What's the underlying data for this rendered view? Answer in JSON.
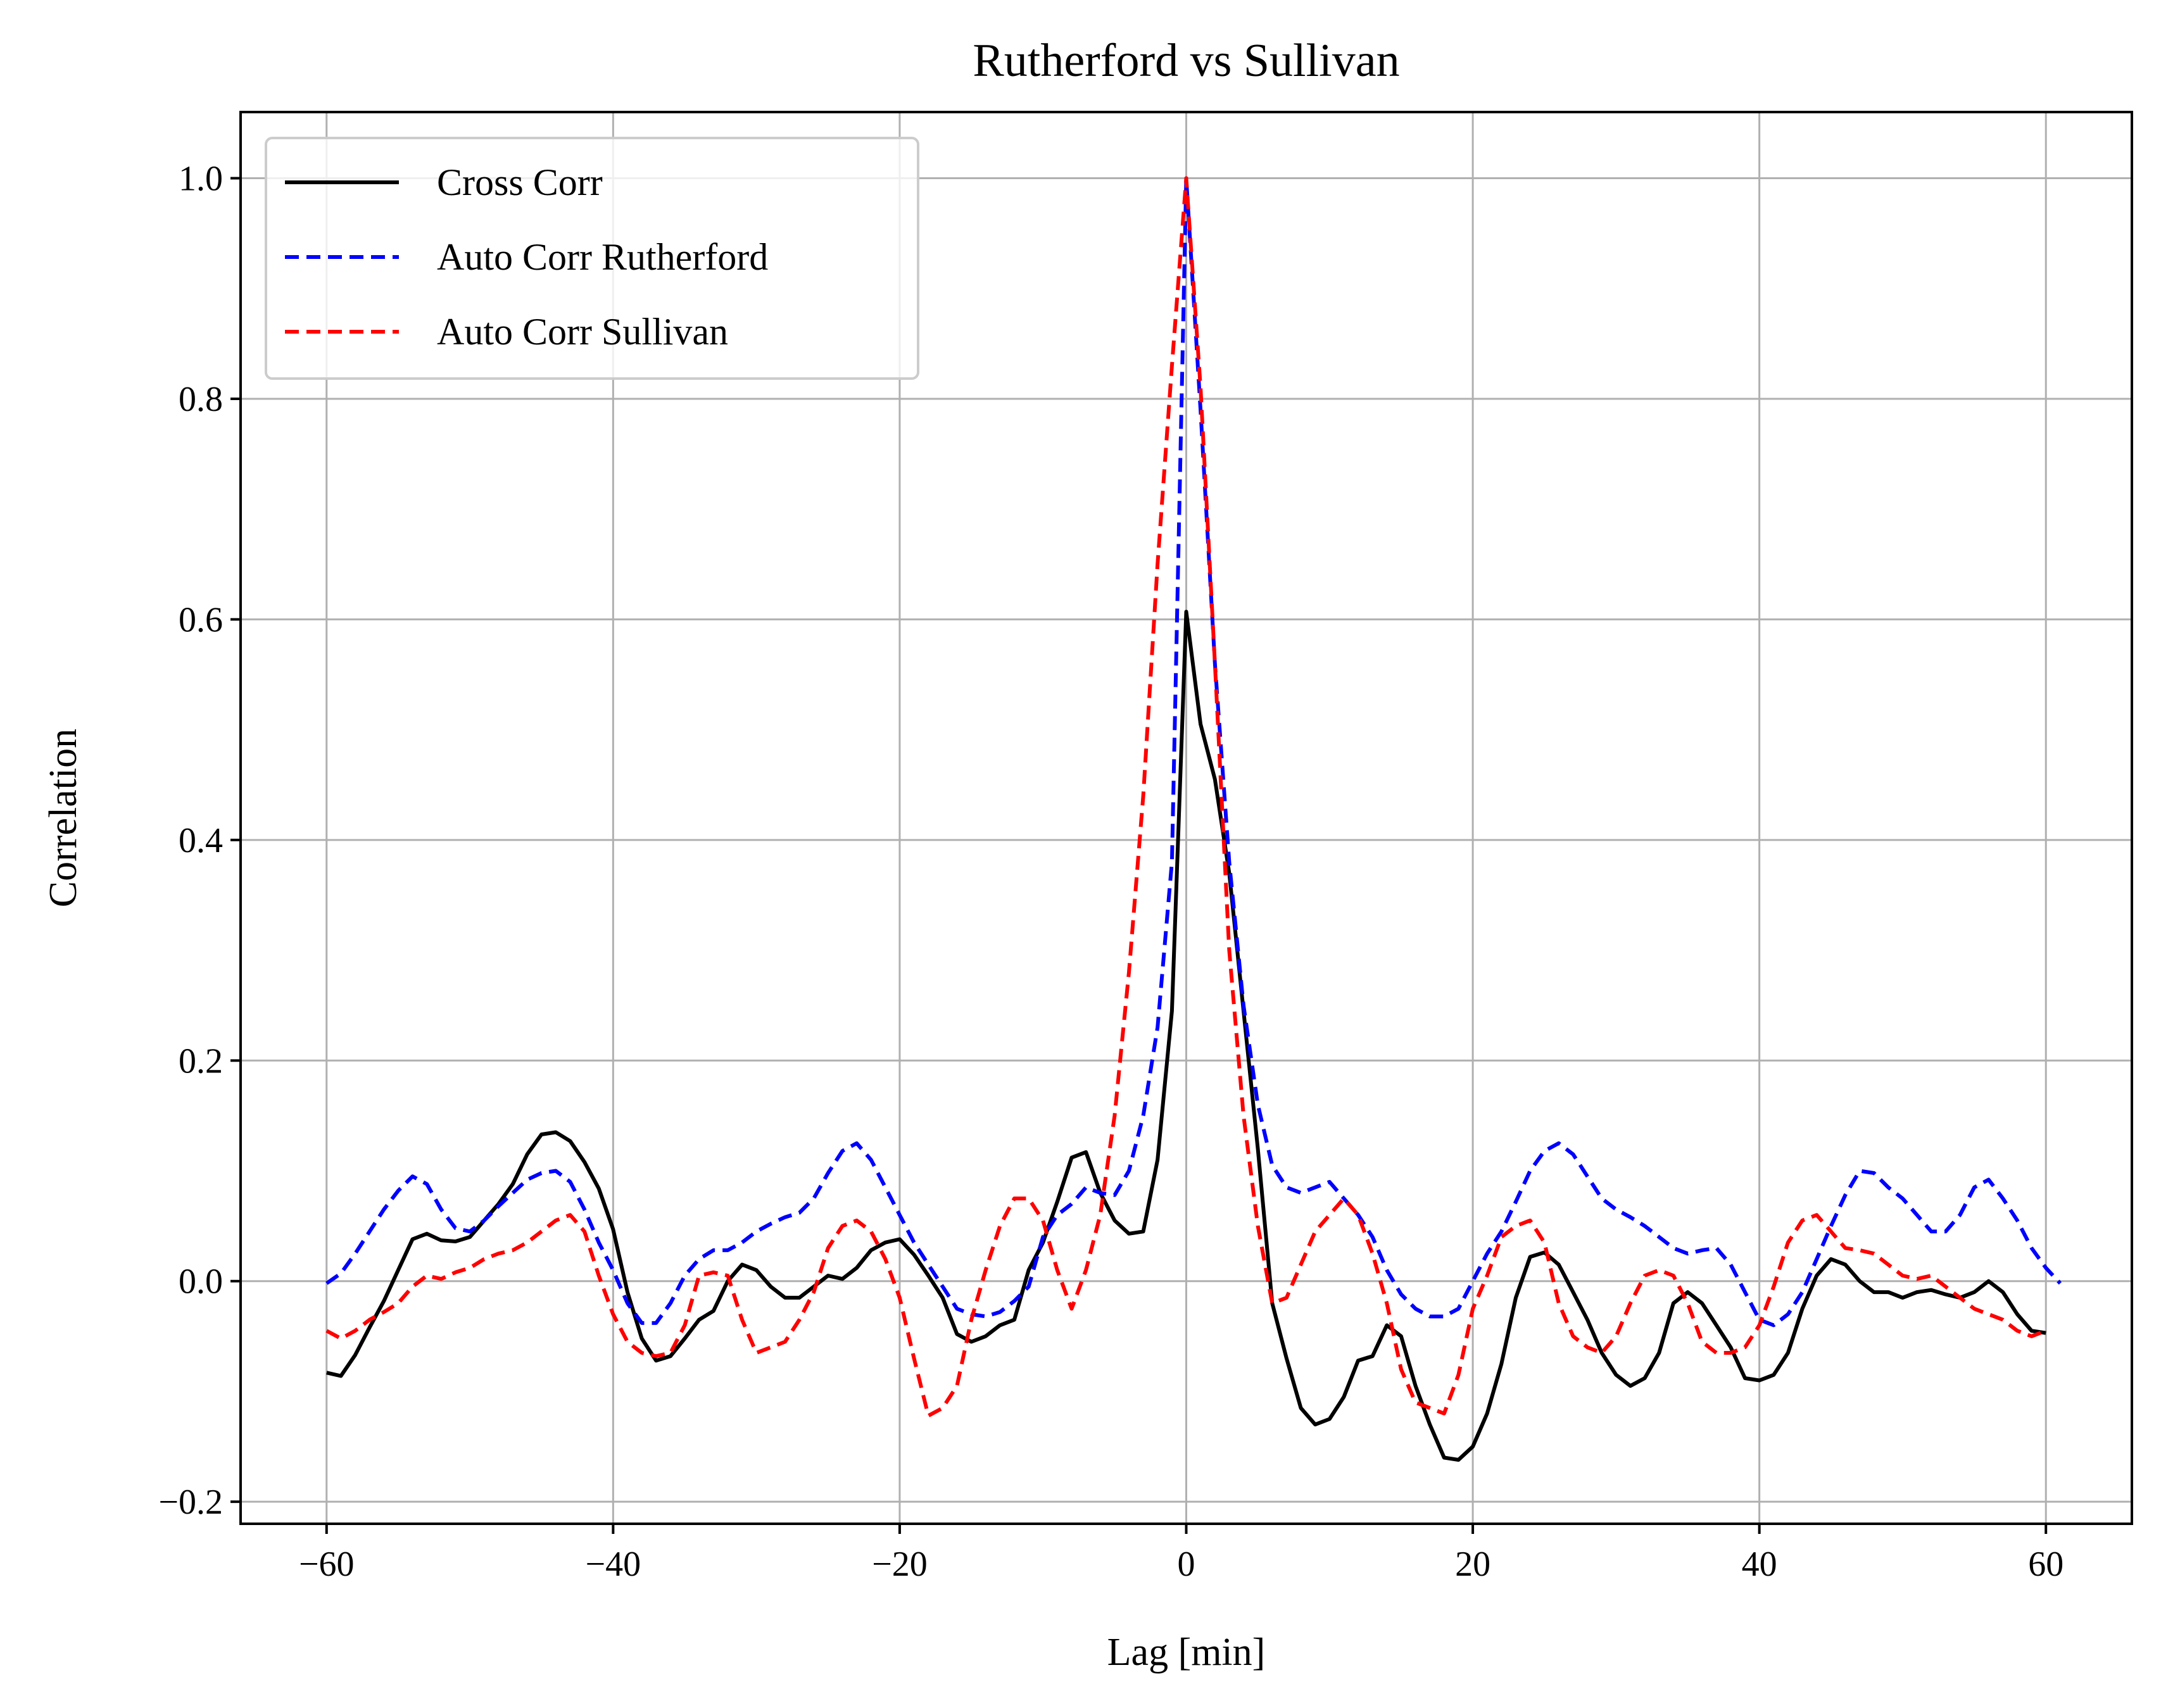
{
  "chart_data": {
    "type": "line",
    "title": "Rutherford vs Sullivan",
    "xlabel": "Lag [min]",
    "ylabel": "Correlation",
    "xlim": [
      -66,
      66
    ],
    "ylim": [
      -0.22,
      1.06
    ],
    "xticks": [
      -60,
      -40,
      -20,
      0,
      20,
      40,
      60
    ],
    "yticks": [
      -0.2,
      0.0,
      0.2,
      0.4,
      0.6,
      0.8,
      1.0
    ],
    "xtick_labels": [
      "−60",
      "−40",
      "−20",
      "0",
      "20",
      "40",
      "60"
    ],
    "ytick_labels": [
      "−0.2",
      "0.0",
      "0.2",
      "0.4",
      "0.6",
      "0.8",
      "1.0"
    ],
    "grid": true,
    "legend_position": "upper-left",
    "x_step": 1,
    "x_start": -60,
    "series": [
      {
        "name": "Cross Corr",
        "color": "#000000",
        "dash": "solid",
        "values": [
          -0.083,
          -0.086,
          -0.067,
          -0.042,
          -0.018,
          0.01,
          0.038,
          0.043,
          0.037,
          0.036,
          0.04,
          0.055,
          0.07,
          0.088,
          0.115,
          0.133,
          0.135,
          0.127,
          0.108,
          0.084,
          0.047,
          -0.01,
          -0.052,
          -0.072,
          -0.068,
          -0.052,
          -0.035,
          -0.027,
          0.0,
          0.015,
          0.01,
          -0.005,
          -0.015,
          -0.015,
          -0.005,
          0.005,
          0.002,
          0.012,
          0.028,
          0.035,
          0.038,
          0.024,
          0.005,
          -0.015,
          -0.048,
          -0.055,
          -0.05,
          -0.04,
          -0.035,
          0.01,
          0.035,
          0.072,
          0.112,
          0.117,
          0.08,
          0.055,
          0.043,
          0.045,
          0.11,
          0.245,
          0.607,
          0.505,
          0.455,
          0.37,
          0.245,
          0.12,
          -0.02,
          -0.07,
          -0.115,
          -0.13,
          -0.125,
          -0.105,
          -0.072,
          -0.068,
          -0.04,
          -0.05,
          -0.095,
          -0.13,
          -0.16,
          -0.162,
          -0.15,
          -0.12,
          -0.075,
          -0.015,
          0.022,
          0.026,
          0.015,
          -0.01,
          -0.035,
          -0.065,
          -0.085,
          -0.095,
          -0.088,
          -0.065,
          -0.02,
          -0.01,
          -0.02,
          -0.04,
          -0.06,
          -0.088,
          -0.09,
          -0.085,
          -0.065,
          -0.025,
          0.005,
          0.02,
          0.015,
          0.0,
          -0.01,
          -0.01,
          -0.015,
          -0.01,
          -0.008,
          -0.012,
          -0.015,
          -0.01,
          0.0,
          -0.01,
          -0.03,
          -0.045,
          -0.047
        ]
      },
      {
        "name": "Auto Corr Rutherford",
        "color": "#0000ff",
        "dash": "dashed",
        "values": [
          -0.002,
          0.007,
          0.025,
          0.045,
          0.065,
          0.082,
          0.095,
          0.088,
          0.065,
          0.048,
          0.045,
          0.055,
          0.068,
          0.08,
          0.092,
          0.098,
          0.1,
          0.09,
          0.065,
          0.035,
          0.01,
          -0.02,
          -0.038,
          -0.038,
          -0.02,
          0.005,
          0.02,
          0.028,
          0.028,
          0.035,
          0.045,
          0.052,
          0.058,
          0.062,
          0.075,
          0.098,
          0.118,
          0.125,
          0.11,
          0.085,
          0.06,
          0.035,
          0.015,
          -0.005,
          -0.025,
          -0.03,
          -0.032,
          -0.028,
          -0.018,
          -0.005,
          0.04,
          0.06,
          0.07,
          0.085,
          0.08,
          0.078,
          0.1,
          0.15,
          0.23,
          0.38,
          1.0,
          0.79,
          0.56,
          0.38,
          0.25,
          0.16,
          0.105,
          0.085,
          0.08,
          0.085,
          0.09,
          0.075,
          0.06,
          0.04,
          0.01,
          -0.012,
          -0.025,
          -0.032,
          -0.032,
          -0.025,
          0.0,
          0.025,
          0.045,
          0.072,
          0.1,
          0.118,
          0.125,
          0.115,
          0.095,
          0.075,
          0.065,
          0.058,
          0.05,
          0.04,
          0.03,
          0.025,
          0.028,
          0.03,
          0.015,
          -0.01,
          -0.035,
          -0.04,
          -0.03,
          -0.01,
          0.02,
          0.05,
          0.078,
          0.1,
          0.098,
          0.085,
          0.075,
          0.06,
          0.045,
          0.045,
          0.06,
          0.085,
          0.092,
          0.075,
          0.055,
          0.03,
          0.012,
          -0.002
        ]
      },
      {
        "name": "Auto Corr Sullivan",
        "color": "#ff0000",
        "dash": "dashed",
        "values": [
          -0.045,
          -0.052,
          -0.045,
          -0.035,
          -0.028,
          -0.02,
          -0.005,
          0.005,
          0.002,
          0.008,
          0.012,
          0.02,
          0.025,
          0.028,
          0.035,
          0.045,
          0.055,
          0.06,
          0.045,
          0.005,
          -0.03,
          -0.055,
          -0.065,
          -0.068,
          -0.065,
          -0.04,
          0.005,
          0.008,
          0.005,
          -0.035,
          -0.065,
          -0.06,
          -0.055,
          -0.035,
          -0.01,
          0.03,
          0.05,
          0.055,
          0.045,
          0.02,
          -0.015,
          -0.07,
          -0.122,
          -0.115,
          -0.095,
          -0.035,
          0.01,
          0.05,
          0.075,
          0.075,
          0.055,
          0.01,
          -0.025,
          0.01,
          0.06,
          0.15,
          0.28,
          0.44,
          0.65,
          0.83,
          1.0,
          0.81,
          0.56,
          0.3,
          0.15,
          0.05,
          -0.02,
          -0.015,
          0.015,
          0.045,
          0.06,
          0.075,
          0.06,
          0.025,
          -0.02,
          -0.08,
          -0.11,
          -0.115,
          -0.12,
          -0.085,
          -0.025,
          0.005,
          0.04,
          0.05,
          0.055,
          0.035,
          -0.02,
          -0.05,
          -0.06,
          -0.065,
          -0.05,
          -0.02,
          0.005,
          0.01,
          0.005,
          -0.02,
          -0.055,
          -0.065,
          -0.065,
          -0.06,
          -0.04,
          -0.005,
          0.035,
          0.055,
          0.06,
          0.045,
          0.03,
          0.028,
          0.025,
          0.015,
          0.005,
          0.002,
          0.005,
          -0.005,
          -0.015,
          -0.025,
          -0.03,
          -0.035,
          -0.045,
          -0.05,
          -0.045
        ]
      }
    ]
  }
}
